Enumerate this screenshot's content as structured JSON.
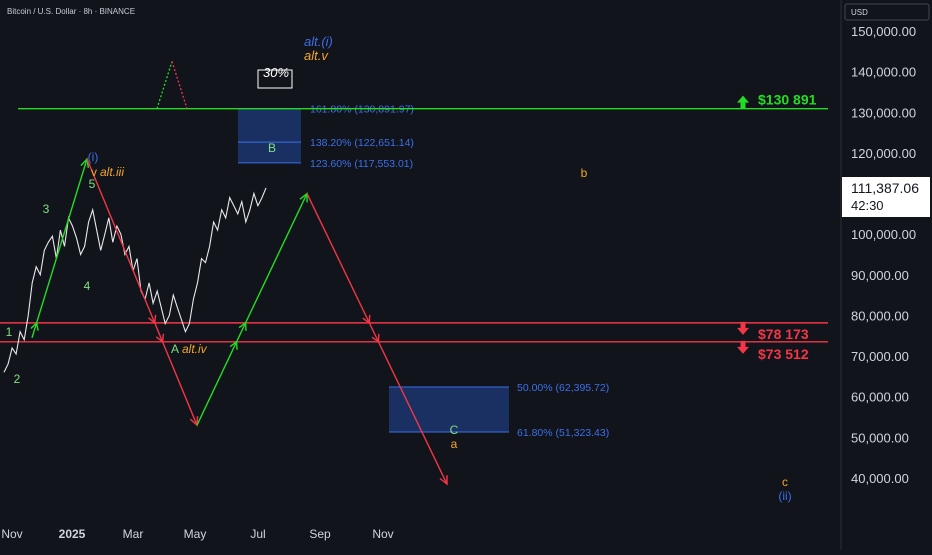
{
  "header": {
    "title": "Bitcoin / U.S. Dollar · 8h · BINANCE"
  },
  "currency_label": "USD",
  "last_price": {
    "value": "111,387.06",
    "countdown": "42:30"
  },
  "colors": {
    "background": "#12141c",
    "green": "#22dd22",
    "red": "#f23645",
    "blue": "#3b6fe8",
    "orange": "#f5a623",
    "lime": "#7ee07e",
    "fib_box": "#1e3a7a"
  },
  "chart_data": {
    "type": "line",
    "title": "Bitcoin / U.S. Dollar · 8h · BINANCE",
    "x_ticks": [
      "Nov",
      "2025",
      "Mar",
      "May",
      "Jul",
      "Sep",
      "Nov"
    ],
    "y_ticks": [
      "40,000.00",
      "50,000.00",
      "60,000.00",
      "70,000.00",
      "80,000.00",
      "90,000.00",
      "100,000.00",
      "110,000.00",
      "120,000.00",
      "130,000.00",
      "140,000.00",
      "150,000.00"
    ],
    "ylim": [
      35000,
      155000
    ],
    "price_series": {
      "name": "BTCUSD",
      "values": [
        66000,
        68000,
        72000,
        70500,
        76000,
        74000,
        80000,
        88000,
        92000,
        90000,
        96000,
        98000,
        99500,
        94000,
        101000,
        97000,
        104000,
        102000,
        99000,
        95000,
        97000,
        103000,
        106000,
        101000,
        96000,
        100000,
        104000,
        98000,
        102000,
        100000,
        95000,
        97000,
        91000,
        94000,
        86000,
        84000,
        88000,
        83000,
        86000,
        82000,
        78000,
        80000,
        85000,
        82000,
        79000,
        76000,
        78000,
        84000,
        88000,
        94000,
        93000,
        97000,
        103000,
        101000,
        106000,
        104000,
        109000,
        107000,
        105000,
        108000,
        103000,
        106000,
        110000,
        107000,
        109000,
        111400
      ]
    },
    "levels": [
      {
        "label": "$130 891",
        "value": 130891,
        "color": "green",
        "direction": "up"
      },
      {
        "label": "$78 173",
        "value": 78173,
        "color": "red",
        "direction": "down"
      },
      {
        "label": "$73 512",
        "value": 73512,
        "color": "red",
        "direction": "down"
      }
    ],
    "fib_upper": [
      {
        "label": "161.80% (130,891.97)",
        "value": 130891.97
      },
      {
        "label": "138.20% (122,651.14)",
        "value": 122651.14
      },
      {
        "label": "123.60% (117,553.01)",
        "value": 117553.01
      }
    ],
    "fib_lower": [
      {
        "label": "50.00% (62,395.72)",
        "value": 62395.72
      },
      {
        "label": "61.80% (51,323.43)",
        "value": 51323.43
      }
    ],
    "projection": [
      {
        "from": [
          72000,
          74500
        ],
        "to": [
          83000,
          118500
        ],
        "color": "green"
      },
      {
        "from": [
          83000,
          118500
        ],
        "to": [
          105000,
          53000
        ],
        "color": "red"
      },
      {
        "from": [
          105000,
          53000
        ],
        "to": [
          127000,
          110000
        ],
        "color": "green"
      },
      {
        "from": [
          127000,
          110000
        ],
        "to": [
          155000,
          38500
        ],
        "color": "red"
      }
    ],
    "alt_projection": [
      {
        "from": [
          97000,
          130900
        ],
        "to": [
          100000,
          142500
        ],
        "color": "green"
      },
      {
        "from": [
          100000,
          142500
        ],
        "to": [
          103000,
          130900
        ],
        "color": "red"
      }
    ],
    "wave_labels": [
      {
        "text": "1",
        "color": "lime"
      },
      {
        "text": "2",
        "color": "lime"
      },
      {
        "text": "3",
        "color": "lime"
      },
      {
        "text": "4",
        "color": "lime"
      },
      {
        "text": "5",
        "color": "lime"
      },
      {
        "text": "(i)",
        "color": "blue"
      },
      {
        "text": "v",
        "color": "orange"
      },
      {
        "text": "alt.iii",
        "color": "orange"
      },
      {
        "text": "A",
        "color": "lime"
      },
      {
        "text": "alt.iv",
        "color": "orange"
      },
      {
        "text": "B",
        "color": "lime"
      },
      {
        "text": "alt.(i)",
        "color": "blue"
      },
      {
        "text": "alt.v",
        "color": "orange"
      },
      {
        "text": "30%",
        "color": "white"
      },
      {
        "text": "C",
        "color": "lime"
      },
      {
        "text": "a",
        "color": "orange"
      },
      {
        "text": "b",
        "color": "orange"
      },
      {
        "text": "c",
        "color": "orange"
      },
      {
        "text": "(ii)",
        "color": "blue"
      }
    ]
  }
}
